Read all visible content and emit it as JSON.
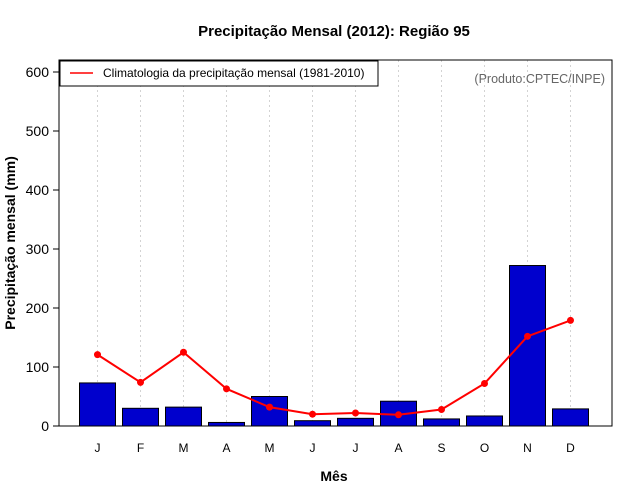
{
  "chart_data": {
    "type": "bar",
    "title": "Precipitação Mensal (2012): Região 95",
    "xlabel": "Mês",
    "ylabel": "Precipitação mensal (mm)",
    "ylim": [
      0,
      600
    ],
    "yticks": [
      0,
      100,
      200,
      300,
      400,
      500,
      600
    ],
    "categories": [
      "J",
      "F",
      "M",
      "A",
      "M",
      "J",
      "J",
      "A",
      "S",
      "O",
      "N",
      "D"
    ],
    "values": [
      73,
      30,
      32,
      6,
      50,
      9,
      13,
      42,
      12,
      17,
      272,
      29
    ],
    "bar_color": "#0000CD",
    "line_series": {
      "name": "Climatologia da precipitação mensal (1981-2010)",
      "values": [
        121,
        74,
        125,
        63,
        32,
        20,
        22,
        19,
        28,
        72,
        152,
        179
      ],
      "color": "#FF0000"
    },
    "legend_position": "top-left",
    "grid": "vertical dotted",
    "annotation": "(Produto:CPTEC/INPE)"
  }
}
